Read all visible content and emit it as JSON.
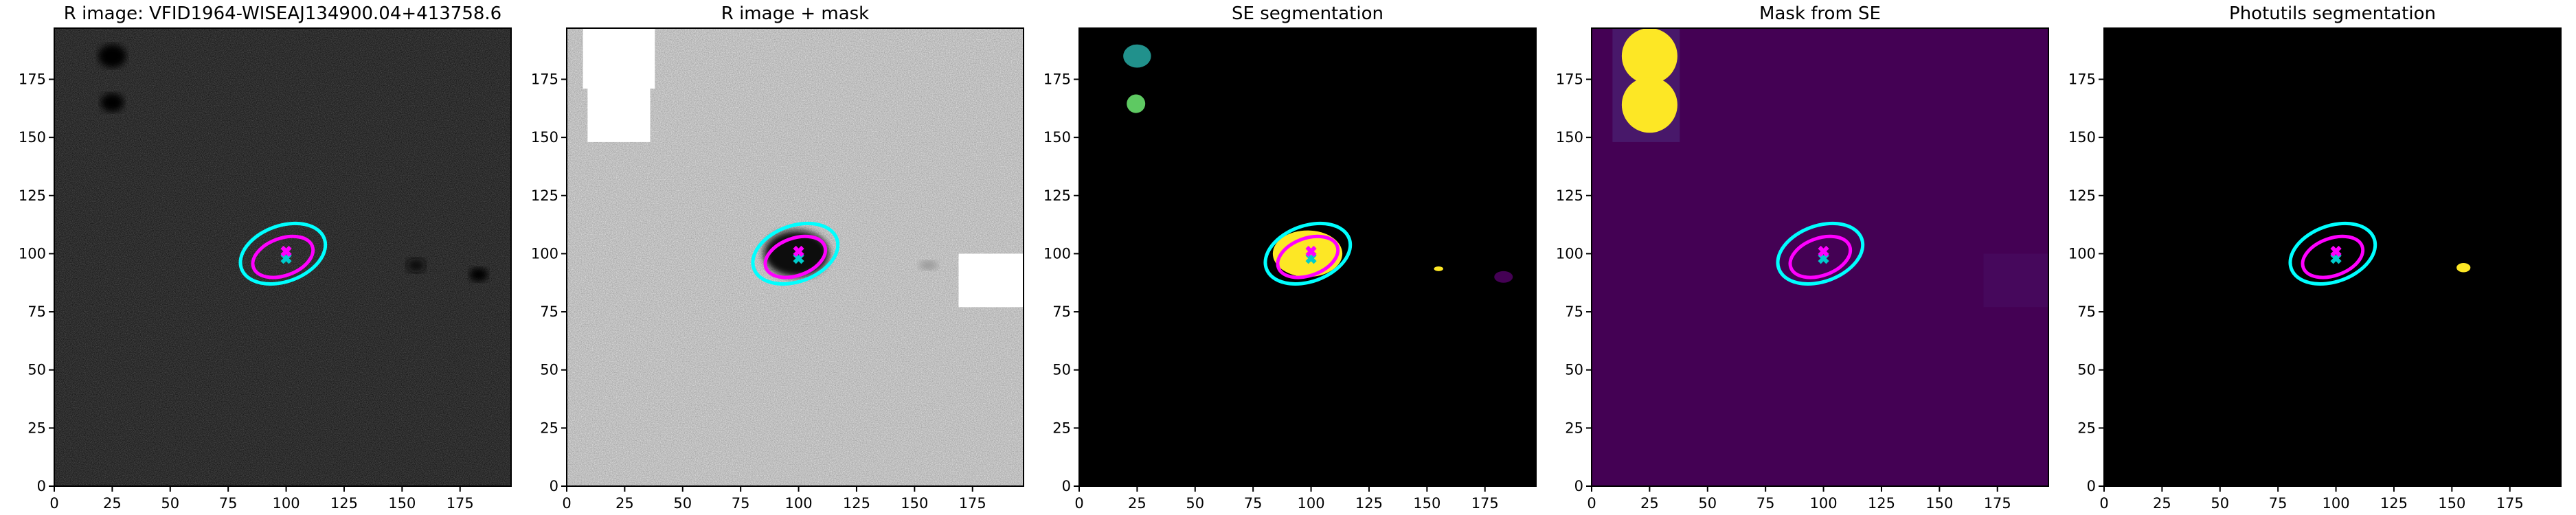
{
  "chart_data": [
    {
      "type": "image",
      "title": "R image: VFID1964-WISEAJ134900.04+413758.6",
      "cmap": "gray",
      "background": "#555555",
      "xlim": [
        0,
        197
      ],
      "ylim": [
        0,
        197
      ],
      "xticks": [
        0,
        25,
        50,
        75,
        100,
        125,
        150,
        175
      ],
      "yticks": [
        0,
        25,
        50,
        75,
        100,
        125,
        150,
        175
      ],
      "regions": [
        {
          "shape": "ellipse",
          "x": 25,
          "y": 185,
          "rx": 6,
          "ry": 5,
          "color": "#000000"
        },
        {
          "shape": "ellipse",
          "x": 25,
          "y": 165,
          "rx": 5,
          "ry": 4,
          "color": "#000000"
        },
        {
          "shape": "ellipse",
          "x": 156,
          "y": 95,
          "rx": 4,
          "ry": 3,
          "color": "#111111"
        },
        {
          "shape": "ellipse",
          "x": 183,
          "y": 91,
          "rx": 4,
          "ry": 3,
          "color": "#000000"
        }
      ],
      "ellipses": [
        {
          "x": 98.6,
          "y": 100,
          "rx": 19,
          "ry": 12,
          "angle": 20,
          "color": "#00ffff"
        },
        {
          "x": 98.6,
          "y": 98.6,
          "rx": 13.5,
          "ry": 8,
          "angle": 20,
          "color": "#ff00ff"
        }
      ],
      "markers": [
        {
          "x": 100,
          "y": 98,
          "color": "#00cccc"
        },
        {
          "x": 100,
          "y": 101,
          "color": "#ff00ff"
        }
      ]
    },
    {
      "type": "image",
      "title": "R image + mask",
      "cmap": "gray_r",
      "background": "#e8e8e8",
      "xlim": [
        0,
        197
      ],
      "ylim": [
        0,
        197
      ],
      "xticks": [
        0,
        25,
        50,
        75,
        100,
        125,
        150,
        175
      ],
      "yticks": [
        0,
        25,
        50,
        75,
        100,
        125,
        150,
        175
      ],
      "regions": [
        {
          "shape": "ellipse",
          "x": 99,
          "y": 100,
          "rx": 14,
          "ry": 10,
          "color": "#111111"
        },
        {
          "shape": "ellipse",
          "x": 156,
          "y": 95,
          "rx": 4,
          "ry": 2,
          "color": "#999999"
        },
        {
          "shape": "rect",
          "x0": 7,
          "x1": 38,
          "y0": 171,
          "y1": 197,
          "color": "#ffffff"
        },
        {
          "shape": "rect",
          "x0": 9,
          "x1": 36,
          "y0": 148,
          "y1": 172,
          "color": "#ffffff"
        },
        {
          "shape": "rect",
          "x0": 169,
          "x1": 197,
          "y0": 77,
          "y1": 100,
          "color": "#ffffff"
        }
      ],
      "ellipses": [
        {
          "x": 98.6,
          "y": 100,
          "rx": 19,
          "ry": 12,
          "angle": 20,
          "color": "#00ffff"
        },
        {
          "x": 98.6,
          "y": 98.6,
          "rx": 13.5,
          "ry": 8,
          "angle": 20,
          "color": "#ff00ff"
        }
      ],
      "markers": [
        {
          "x": 100,
          "y": 98,
          "color": "#00cccc"
        },
        {
          "x": 100,
          "y": 101,
          "color": "#ff00ff"
        }
      ]
    },
    {
      "type": "image",
      "title": "SE segmentation",
      "background": "#000000",
      "xlim": [
        0,
        197
      ],
      "ylim": [
        0,
        197
      ],
      "xticks": [
        0,
        25,
        50,
        75,
        100,
        125,
        150,
        175
      ],
      "yticks": [
        0,
        25,
        50,
        75,
        100,
        125,
        150,
        175
      ],
      "regions": [
        {
          "shape": "ellipse",
          "x": 25,
          "y": 185,
          "rx": 6,
          "ry": 5,
          "color": "#21918c"
        },
        {
          "shape": "ellipse",
          "x": 24.5,
          "y": 164.5,
          "rx": 4,
          "ry": 4,
          "color": "#5ec962"
        },
        {
          "shape": "ellipse",
          "x": 98.5,
          "y": 100,
          "rx": 15,
          "ry": 10,
          "color": "#fde725"
        },
        {
          "shape": "ellipse",
          "x": 155,
          "y": 93.5,
          "rx": 2,
          "ry": 1,
          "color": "#fde725"
        },
        {
          "shape": "ellipse",
          "x": 183,
          "y": 90,
          "rx": 4,
          "ry": 2.5,
          "color": "#440154"
        }
      ],
      "ellipses": [
        {
          "x": 98.6,
          "y": 100,
          "rx": 19,
          "ry": 12,
          "angle": 20,
          "color": "#00ffff"
        },
        {
          "x": 98.6,
          "y": 98.6,
          "rx": 13.5,
          "ry": 8,
          "angle": 20,
          "color": "#ff00ff"
        }
      ],
      "markers": [
        {
          "x": 100,
          "y": 98,
          "color": "#00cccc"
        },
        {
          "x": 100,
          "y": 101,
          "color": "#ff00ff"
        }
      ]
    },
    {
      "type": "image",
      "title": "Mask from SE",
      "background": "#440154",
      "xlim": [
        0,
        197
      ],
      "ylim": [
        0,
        197
      ],
      "xticks": [
        0,
        25,
        50,
        75,
        100,
        125,
        150,
        175
      ],
      "yticks": [
        0,
        25,
        50,
        75,
        100,
        125,
        150,
        175
      ],
      "regions": [
        {
          "shape": "rect",
          "x0": 9,
          "x1": 38,
          "y0": 148,
          "y1": 197,
          "color": "#48186a"
        },
        {
          "shape": "rect",
          "x0": 169,
          "x1": 197,
          "y0": 77,
          "y1": 100,
          "color": "#46085c"
        },
        {
          "shape": "ellipse",
          "x": 25,
          "y": 185,
          "rx": 12,
          "ry": 12,
          "color": "#fde725"
        },
        {
          "shape": "ellipse",
          "x": 25,
          "y": 164,
          "rx": 12,
          "ry": 12,
          "color": "#fde725"
        }
      ],
      "ellipses": [
        {
          "x": 98.6,
          "y": 100,
          "rx": 19,
          "ry": 12,
          "angle": 20,
          "color": "#00ffff"
        },
        {
          "x": 98.6,
          "y": 98.6,
          "rx": 13.5,
          "ry": 8,
          "angle": 20,
          "color": "#ff00ff"
        }
      ],
      "markers": [
        {
          "x": 100,
          "y": 98,
          "color": "#00cccc"
        },
        {
          "x": 100,
          "y": 101,
          "color": "#ff00ff"
        }
      ]
    },
    {
      "type": "image",
      "title": "Photutils segmentation",
      "background": "#000000",
      "xlim": [
        0,
        197
      ],
      "ylim": [
        0,
        197
      ],
      "xticks": [
        0,
        25,
        50,
        75,
        100,
        125,
        150,
        175
      ],
      "yticks": [
        0,
        25,
        50,
        75,
        100,
        125,
        150,
        175
      ],
      "regions": [
        {
          "shape": "ellipse",
          "x": 155,
          "y": 94,
          "rx": 3,
          "ry": 2,
          "color": "#fde725"
        }
      ],
      "ellipses": [
        {
          "x": 98.6,
          "y": 100,
          "rx": 19,
          "ry": 12,
          "angle": 20,
          "color": "#00ffff"
        },
        {
          "x": 98.6,
          "y": 98.6,
          "rx": 13.5,
          "ry": 8,
          "angle": 20,
          "color": "#ff00ff"
        }
      ],
      "markers": [
        {
          "x": 100,
          "y": 98,
          "color": "#00cccc"
        },
        {
          "x": 100,
          "y": 101,
          "color": "#ff00ff"
        }
      ]
    }
  ]
}
